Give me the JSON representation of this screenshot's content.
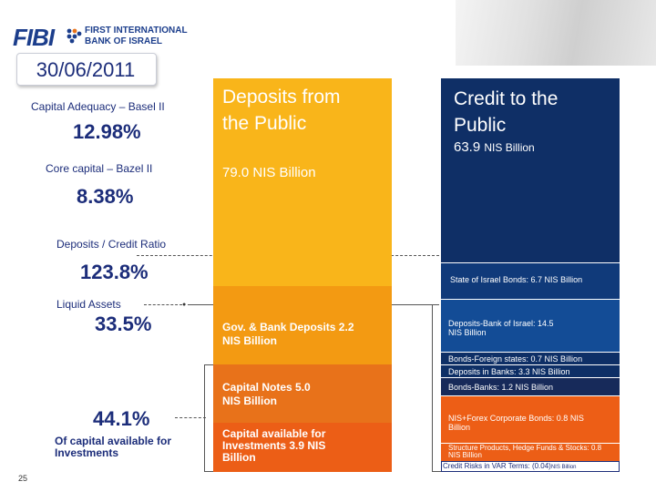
{
  "header": {
    "logo_text": "FIBI",
    "logo_line1": "FIRST INTERNATIONAL",
    "logo_line2": "BANK OF ISRAEL",
    "date": "30/06/2011"
  },
  "ratios": {
    "capital_adequacy_label": "Capital Adequacy – Basel II",
    "capital_adequacy_value": "12.98%",
    "core_capital_label": "Core capital – Bazel II",
    "core_capital_value": "8.38%",
    "deposits_credit_label": "Deposits / Credit Ratio",
    "deposits_credit_value": "123.8%",
    "liquid_assets_label": "Liquid Assets",
    "liquid_assets_value": "33.5%",
    "investments_value": "44.1%",
    "investments_label": "Of capital available for Investments"
  },
  "deposits": {
    "title": "Deposits from the Public",
    "amount": "79.0 NIS Billion",
    "gov_bank": "Gov. & Bank Deposits 2.2 NIS Billion",
    "capital_notes": "Capital Notes 5.0 NIS Billion",
    "capital_available": "Capital available for Investments 3.9 NIS Billion"
  },
  "credit": {
    "title": "Credit to the Public",
    "amount_num": "63.9",
    "amount_unit": "NIS Billion",
    "state_bonds": "State of Israel Bonds: 6.7 NIS Billion",
    "deposits_boi": "Deposits-Bank of Israel: 14.5 NIS Billion",
    "bonds_foreign": "Bonds-Foreign states: 0.7 NIS Billion",
    "deposits_banks": "Deposits in Banks: 3.3 NIS Billion",
    "bonds_banks": "Bonds-Banks: 1.2 NIS Billion",
    "nis_forex": "NIS+Forex Corporate Bonds: 0.8 NIS Billion",
    "structure": "Structure Products, Hedge Funds & Stocks: 0.8 NIS Billion",
    "credit_risks": "Credit Risks in VAR Terms: (0.04)",
    "credit_risks_unit": "NIS Billion"
  },
  "footer": {
    "page_number": "25"
  },
  "colors": {
    "navy": "#0f2f66",
    "yellow": "#f9b51a",
    "orange": "#ec5e16",
    "text_blue": "#1c2d7a"
  }
}
